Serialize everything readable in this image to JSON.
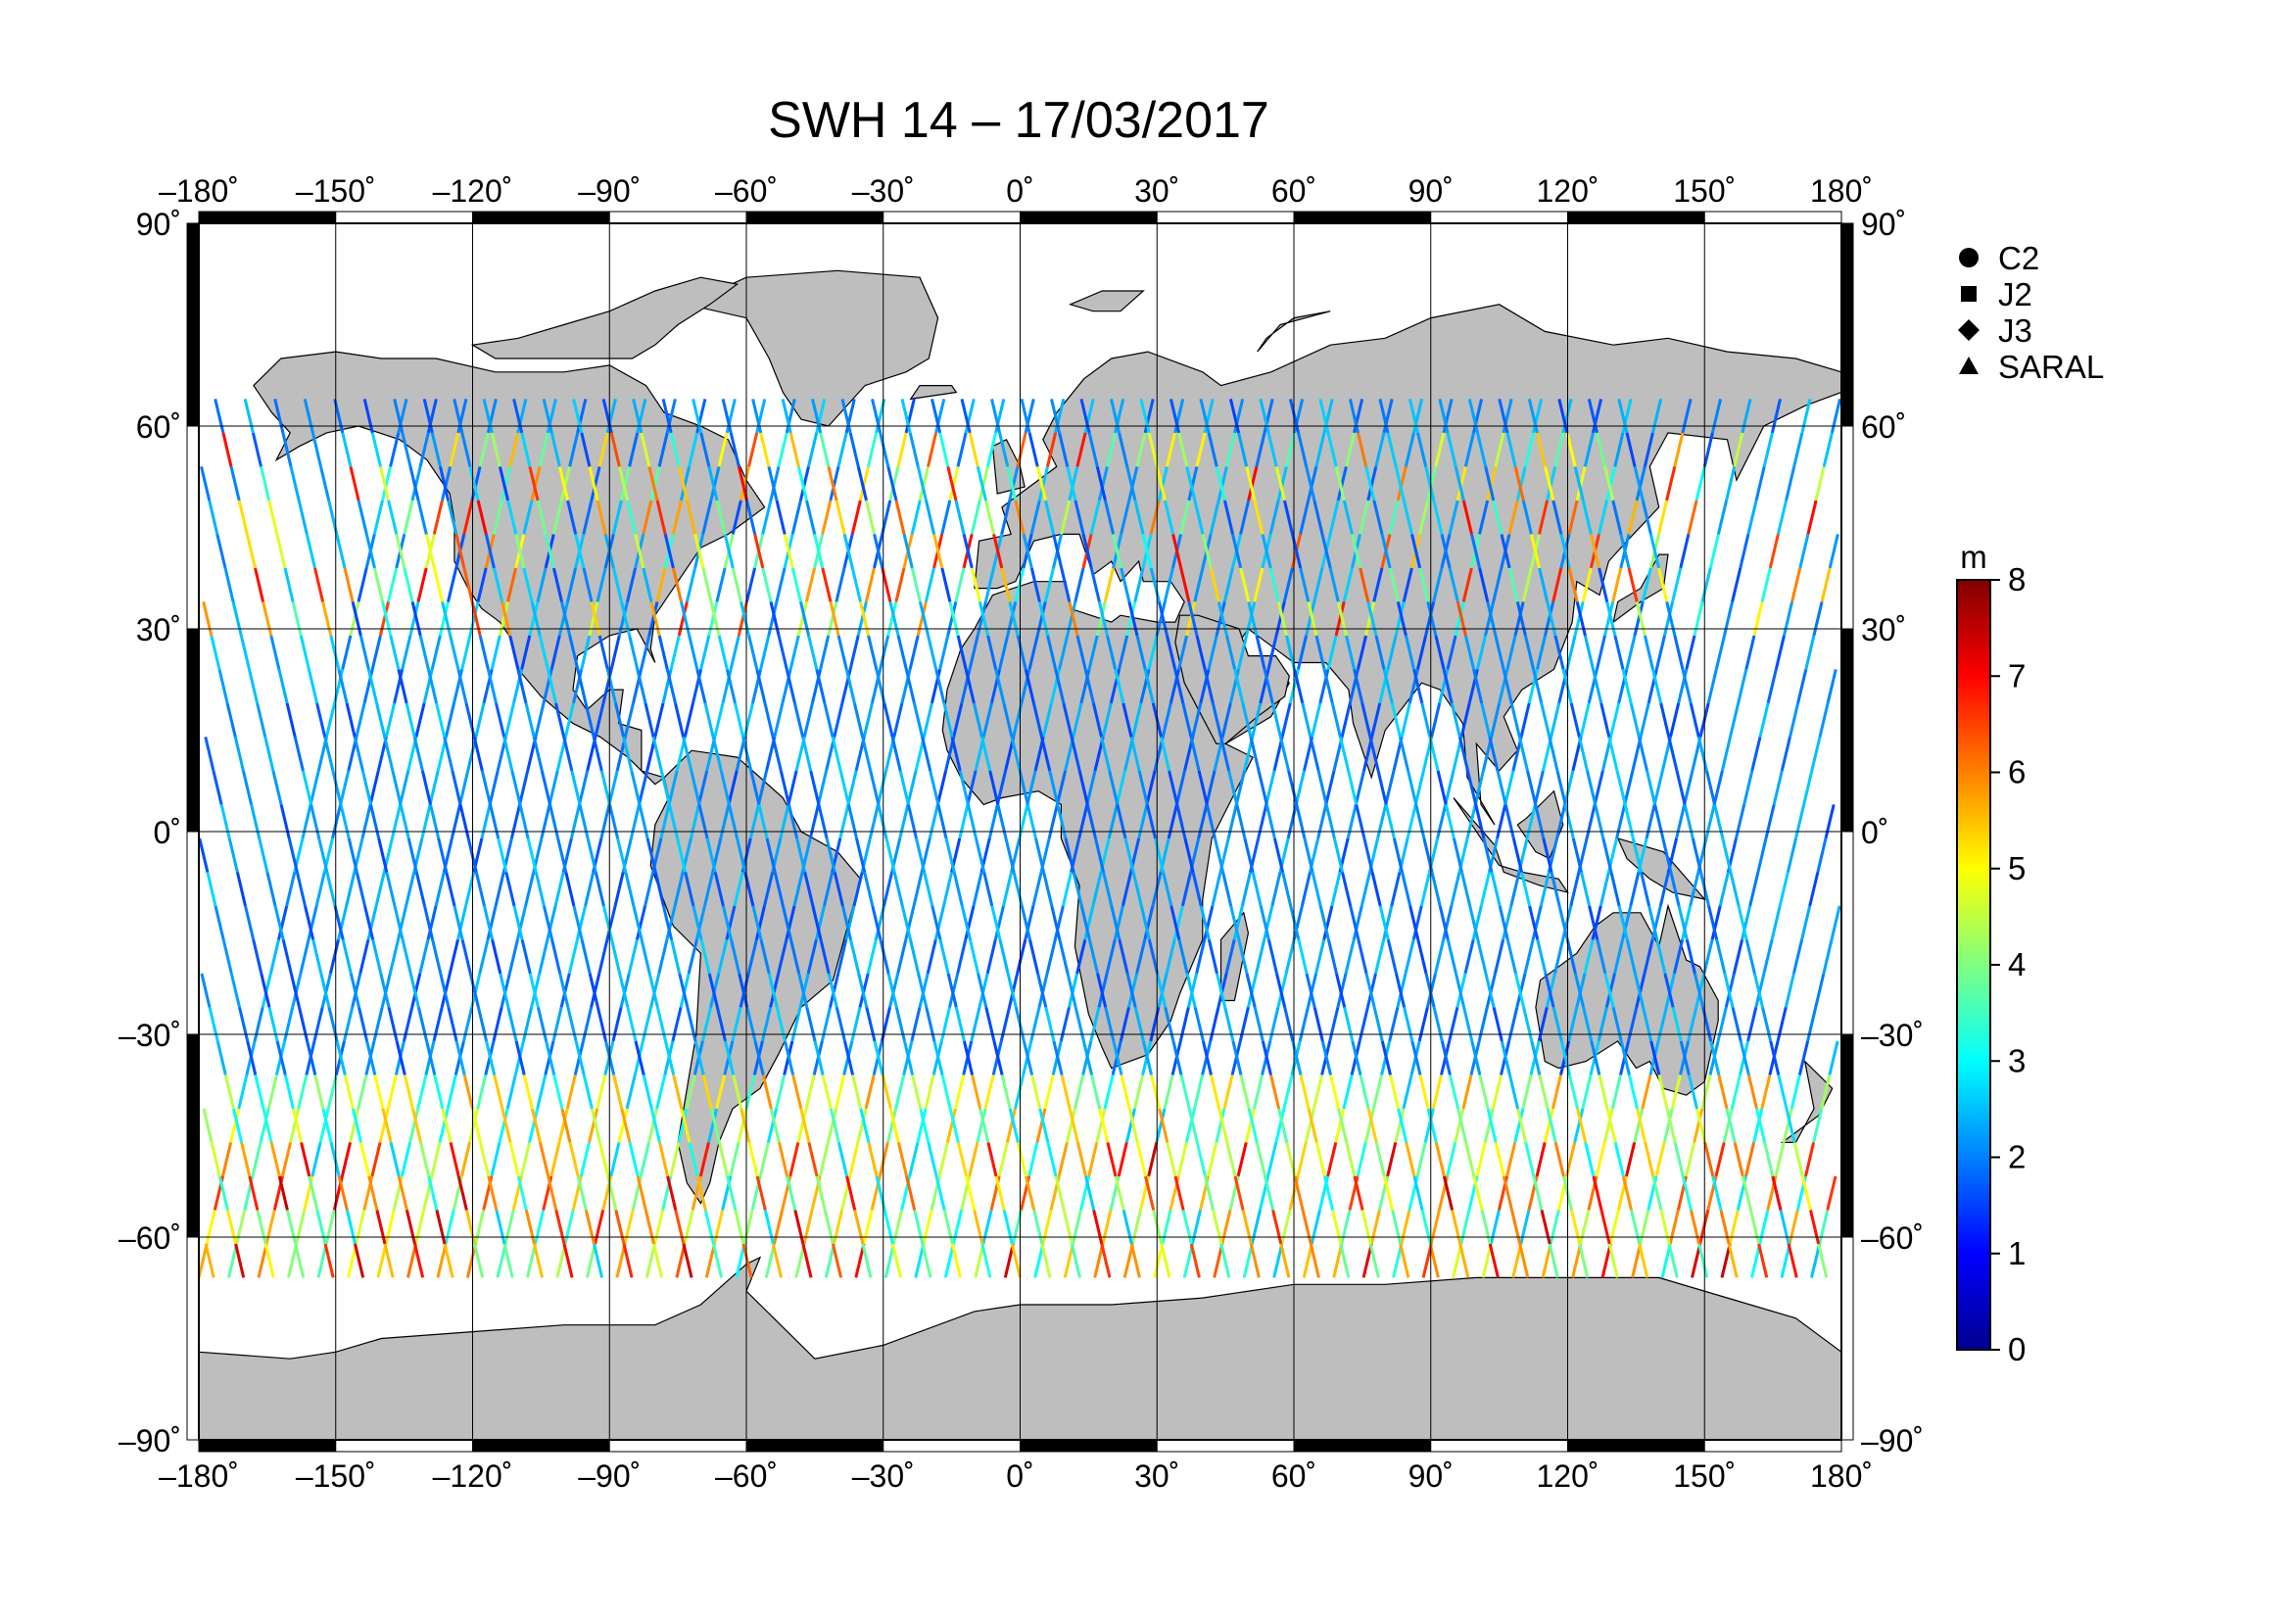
{
  "title": "SWH 14 – 17/03/2017",
  "axes": {
    "lon_ticks": [
      -180,
      -150,
      -120,
      -90,
      -60,
      -30,
      0,
      30,
      60,
      90,
      120,
      150,
      180
    ],
    "lat_ticks": [
      90,
      60,
      30,
      0,
      -30,
      -60,
      -90
    ],
    "lon_labels": [
      "–180˚",
      "–150˚",
      "–120˚",
      "–90˚",
      "–60˚",
      "–30˚",
      "0˚",
      "30˚",
      "60˚",
      "90˚",
      "120˚",
      "150˚",
      "180˚"
    ],
    "lat_labels": [
      "90˚",
      "60˚",
      "30˚",
      "0˚",
      "–30˚",
      "–60˚",
      "–90˚"
    ],
    "lon_range": [
      -180,
      180
    ],
    "lat_range": [
      -90,
      90
    ],
    "grid": true
  },
  "legend": {
    "items": [
      {
        "symbol": "circle",
        "label": "C2"
      },
      {
        "symbol": "square",
        "label": "J2"
      },
      {
        "symbol": "diamond",
        "label": "J3"
      },
      {
        "symbol": "triangle",
        "label": "SARAL"
      }
    ],
    "placement": "right-top"
  },
  "colorbar": {
    "unit": "m",
    "min": 0,
    "max": 8,
    "ticks": [
      "0",
      "1",
      "2",
      "3",
      "4",
      "5",
      "6",
      "7",
      "8"
    ],
    "colors": [
      "#00008f",
      "#0000ff",
      "#0080ff",
      "#00ffff",
      "#80ff80",
      "#ffff00",
      "#ff8000",
      "#ff0000",
      "#800000"
    ]
  },
  "colors": {
    "land": "#bebebe",
    "ocean": "#ffffff",
    "coast": "#000000",
    "grid": "#000000"
  }
}
